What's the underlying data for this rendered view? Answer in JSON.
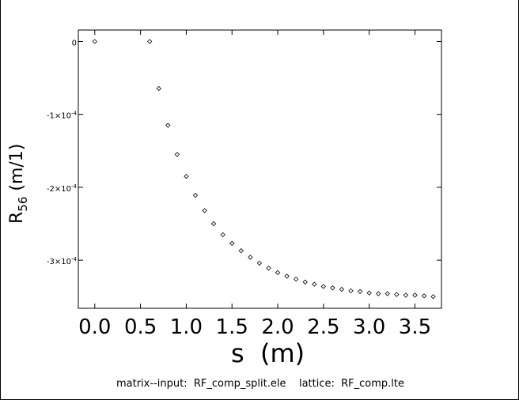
{
  "chart_data": {
    "type": "scatter",
    "title": "",
    "xlabel": "s  (m)",
    "ylabel": {
      "main": "R",
      "sub": "56",
      "unit": " (m/1)"
    },
    "x_ticks": [
      "0.0",
      "0.5",
      "1.0",
      "1.5",
      "2.0",
      "2.5",
      "3.0",
      "3.5"
    ],
    "x_tick_values": [
      0.0,
      0.5,
      1.0,
      1.5,
      2.0,
      2.5,
      3.0,
      3.5
    ],
    "y_ticks": [
      {
        "value": 0,
        "label": "0",
        "exp": ""
      },
      {
        "value": -0.0001,
        "label": "-1×10",
        "exp": "-4"
      },
      {
        "value": -0.0002,
        "label": "-2×10",
        "exp": "-4"
      },
      {
        "value": -0.0003,
        "label": "-3×10",
        "exp": "-4"
      }
    ],
    "xlim": [
      -0.18,
      3.79
    ],
    "ylim": [
      -0.000366,
      1.57e-05
    ],
    "grid": false,
    "marker": "diamond",
    "series": [
      {
        "x": [
          0.0,
          0.6,
          0.7,
          0.8,
          0.9,
          1.0,
          1.1,
          1.2,
          1.3,
          1.4,
          1.5,
          1.6,
          1.7,
          1.8,
          1.9,
          2.0,
          2.1,
          2.2,
          2.3,
          2.4,
          2.5,
          2.6,
          2.7,
          2.8,
          2.9,
          3.0,
          3.1,
          3.2,
          3.3,
          3.4,
          3.5,
          3.6,
          3.7
        ],
        "y": [
          0.0,
          0.0,
          -6.45e-05,
          -0.000115,
          -0.000155,
          -0.000185,
          -0.000211,
          -0.000232,
          -0.00025,
          -0.000265,
          -0.000277,
          -0.000287,
          -0.000296,
          -0.000304,
          -0.000311,
          -0.000317,
          -0.000322,
          -0.000326,
          -0.00033,
          -0.000333,
          -0.000336,
          -0.000338,
          -0.00034,
          -0.000342,
          -0.000343,
          -0.000345,
          -0.000346,
          -0.000346,
          -0.000347,
          -0.000348,
          -0.000348,
          -0.000349,
          -0.00035
        ]
      }
    ]
  },
  "caption": "matrix--input:  RF_comp_split.ele    lattice:  RF_comp.lte"
}
